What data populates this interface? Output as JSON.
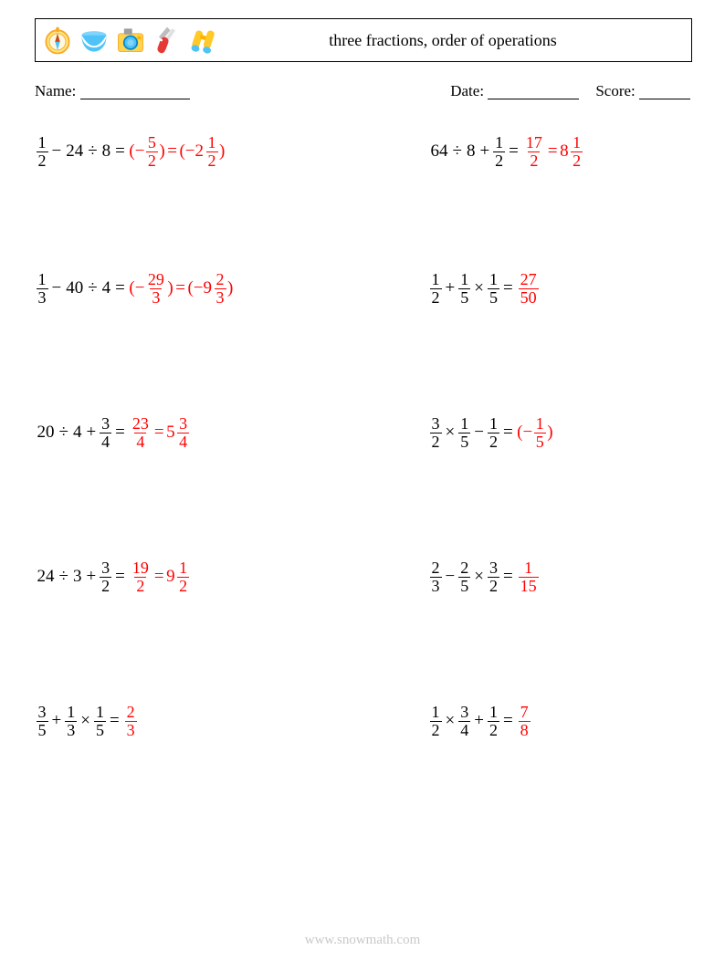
{
  "header": {
    "title": "three fractions, order of operations",
    "title_fontsize": 18,
    "border_color": "#000000",
    "background": "#ffffff",
    "icons": [
      {
        "name": "compass",
        "circle": "#ffe57f",
        "accent": "#4fc3f7",
        "detail": "#d84315"
      },
      {
        "name": "bowl",
        "fill": "#4fc3f7",
        "rim": "#81d4fa"
      },
      {
        "name": "camera",
        "body": "#ffd54f",
        "lens": "#4fc3f7",
        "top": "#9e9e9e"
      },
      {
        "name": "knife",
        "handle": "#e53935",
        "blade": "#bdbdbd"
      },
      {
        "name": "binoculars",
        "body": "#ffca28",
        "lens": "#4fc3f7"
      }
    ]
  },
  "meta": {
    "name_label": "Name:",
    "date_label": "Date:",
    "score_label": "Score:",
    "name_blank_width": 120,
    "date_blank_width": 100,
    "score_blank_width": 56
  },
  "style": {
    "text_color": "#000000",
    "answer_color": "#ff0000",
    "font_family": "Times New Roman",
    "expr_fontsize": 19,
    "frac_fontsize": 18
  },
  "footer": {
    "text": "www.snowmath.com",
    "color": "#c9c9c9",
    "fontsize": 15
  },
  "problems": [
    {
      "left": {
        "problem": [
          {
            "t": "frac",
            "n": "1",
            "d": "2"
          },
          {
            "t": "op",
            "v": "−"
          },
          {
            "t": "int",
            "v": "24"
          },
          {
            "t": "op",
            "v": "÷"
          },
          {
            "t": "int",
            "v": "8"
          },
          {
            "t": "op",
            "v": "="
          }
        ],
        "answer": [
          {
            "t": "txt",
            "v": "(−"
          },
          {
            "t": "frac",
            "n": "5",
            "d": "2"
          },
          {
            "t": "txt",
            "v": ")"
          },
          {
            "t": "op",
            "v": "="
          },
          {
            "t": "txt",
            "v": "(−"
          },
          {
            "t": "mixed",
            "w": "2",
            "n": "1",
            "d": "2"
          },
          {
            "t": "txt",
            "v": ")"
          }
        ]
      },
      "right": {
        "problem": [
          {
            "t": "int",
            "v": "64"
          },
          {
            "t": "op",
            "v": "÷"
          },
          {
            "t": "int",
            "v": "8"
          },
          {
            "t": "op",
            "v": "+"
          },
          {
            "t": "frac",
            "n": "1",
            "d": "2"
          },
          {
            "t": "op",
            "v": "="
          }
        ],
        "answer": [
          {
            "t": "frac",
            "n": "17",
            "d": "2"
          },
          {
            "t": "op",
            "v": "="
          },
          {
            "t": "mixed",
            "w": "8",
            "n": "1",
            "d": "2"
          }
        ]
      }
    },
    {
      "left": {
        "problem": [
          {
            "t": "frac",
            "n": "1",
            "d": "3"
          },
          {
            "t": "op",
            "v": "−"
          },
          {
            "t": "int",
            "v": "40"
          },
          {
            "t": "op",
            "v": "÷"
          },
          {
            "t": "int",
            "v": "4"
          },
          {
            "t": "op",
            "v": "="
          }
        ],
        "answer": [
          {
            "t": "txt",
            "v": "(−"
          },
          {
            "t": "frac",
            "n": "29",
            "d": "3"
          },
          {
            "t": "txt",
            "v": ")"
          },
          {
            "t": "op",
            "v": "="
          },
          {
            "t": "txt",
            "v": "(−"
          },
          {
            "t": "mixed",
            "w": "9",
            "n": "2",
            "d": "3"
          },
          {
            "t": "txt",
            "v": ")"
          }
        ]
      },
      "right": {
        "problem": [
          {
            "t": "frac",
            "n": "1",
            "d": "2"
          },
          {
            "t": "op",
            "v": "+"
          },
          {
            "t": "frac",
            "n": "1",
            "d": "5"
          },
          {
            "t": "op",
            "v": "×"
          },
          {
            "t": "frac",
            "n": "1",
            "d": "5"
          },
          {
            "t": "op",
            "v": "="
          }
        ],
        "answer": [
          {
            "t": "frac",
            "n": "27",
            "d": "50"
          }
        ]
      }
    },
    {
      "left": {
        "problem": [
          {
            "t": "int",
            "v": "20"
          },
          {
            "t": "op",
            "v": "÷"
          },
          {
            "t": "int",
            "v": "4"
          },
          {
            "t": "op",
            "v": "+"
          },
          {
            "t": "frac",
            "n": "3",
            "d": "4"
          },
          {
            "t": "op",
            "v": "="
          }
        ],
        "answer": [
          {
            "t": "frac",
            "n": "23",
            "d": "4"
          },
          {
            "t": "op",
            "v": "="
          },
          {
            "t": "mixed",
            "w": "5",
            "n": "3",
            "d": "4"
          }
        ]
      },
      "right": {
        "problem": [
          {
            "t": "frac",
            "n": "3",
            "d": "2"
          },
          {
            "t": "op",
            "v": "×"
          },
          {
            "t": "frac",
            "n": "1",
            "d": "5"
          },
          {
            "t": "op",
            "v": "−"
          },
          {
            "t": "frac",
            "n": "1",
            "d": "2"
          },
          {
            "t": "op",
            "v": "="
          }
        ],
        "answer": [
          {
            "t": "txt",
            "v": "(−"
          },
          {
            "t": "frac",
            "n": "1",
            "d": "5"
          },
          {
            "t": "txt",
            "v": ")"
          }
        ]
      }
    },
    {
      "left": {
        "problem": [
          {
            "t": "int",
            "v": "24"
          },
          {
            "t": "op",
            "v": "÷"
          },
          {
            "t": "int",
            "v": "3"
          },
          {
            "t": "op",
            "v": "+"
          },
          {
            "t": "frac",
            "n": "3",
            "d": "2"
          },
          {
            "t": "op",
            "v": "="
          }
        ],
        "answer": [
          {
            "t": "frac",
            "n": "19",
            "d": "2"
          },
          {
            "t": "op",
            "v": "="
          },
          {
            "t": "mixed",
            "w": "9",
            "n": "1",
            "d": "2"
          }
        ]
      },
      "right": {
        "problem": [
          {
            "t": "frac",
            "n": "2",
            "d": "3"
          },
          {
            "t": "op",
            "v": "−"
          },
          {
            "t": "frac",
            "n": "2",
            "d": "5"
          },
          {
            "t": "op",
            "v": "×"
          },
          {
            "t": "frac",
            "n": "3",
            "d": "2"
          },
          {
            "t": "op",
            "v": "="
          }
        ],
        "answer": [
          {
            "t": "frac",
            "n": "1",
            "d": "15"
          }
        ]
      }
    },
    {
      "left": {
        "problem": [
          {
            "t": "frac",
            "n": "3",
            "d": "5"
          },
          {
            "t": "op",
            "v": "+"
          },
          {
            "t": "frac",
            "n": "1",
            "d": "3"
          },
          {
            "t": "op",
            "v": "×"
          },
          {
            "t": "frac",
            "n": "1",
            "d": "5"
          },
          {
            "t": "op",
            "v": "="
          }
        ],
        "answer": [
          {
            "t": "frac",
            "n": "2",
            "d": "3"
          }
        ]
      },
      "right": {
        "problem": [
          {
            "t": "frac",
            "n": "1",
            "d": "2"
          },
          {
            "t": "op",
            "v": "×"
          },
          {
            "t": "frac",
            "n": "3",
            "d": "4"
          },
          {
            "t": "op",
            "v": "+"
          },
          {
            "t": "frac",
            "n": "1",
            "d": "2"
          },
          {
            "t": "op",
            "v": "="
          }
        ],
        "answer": [
          {
            "t": "frac",
            "n": "7",
            "d": "8"
          }
        ]
      }
    }
  ]
}
